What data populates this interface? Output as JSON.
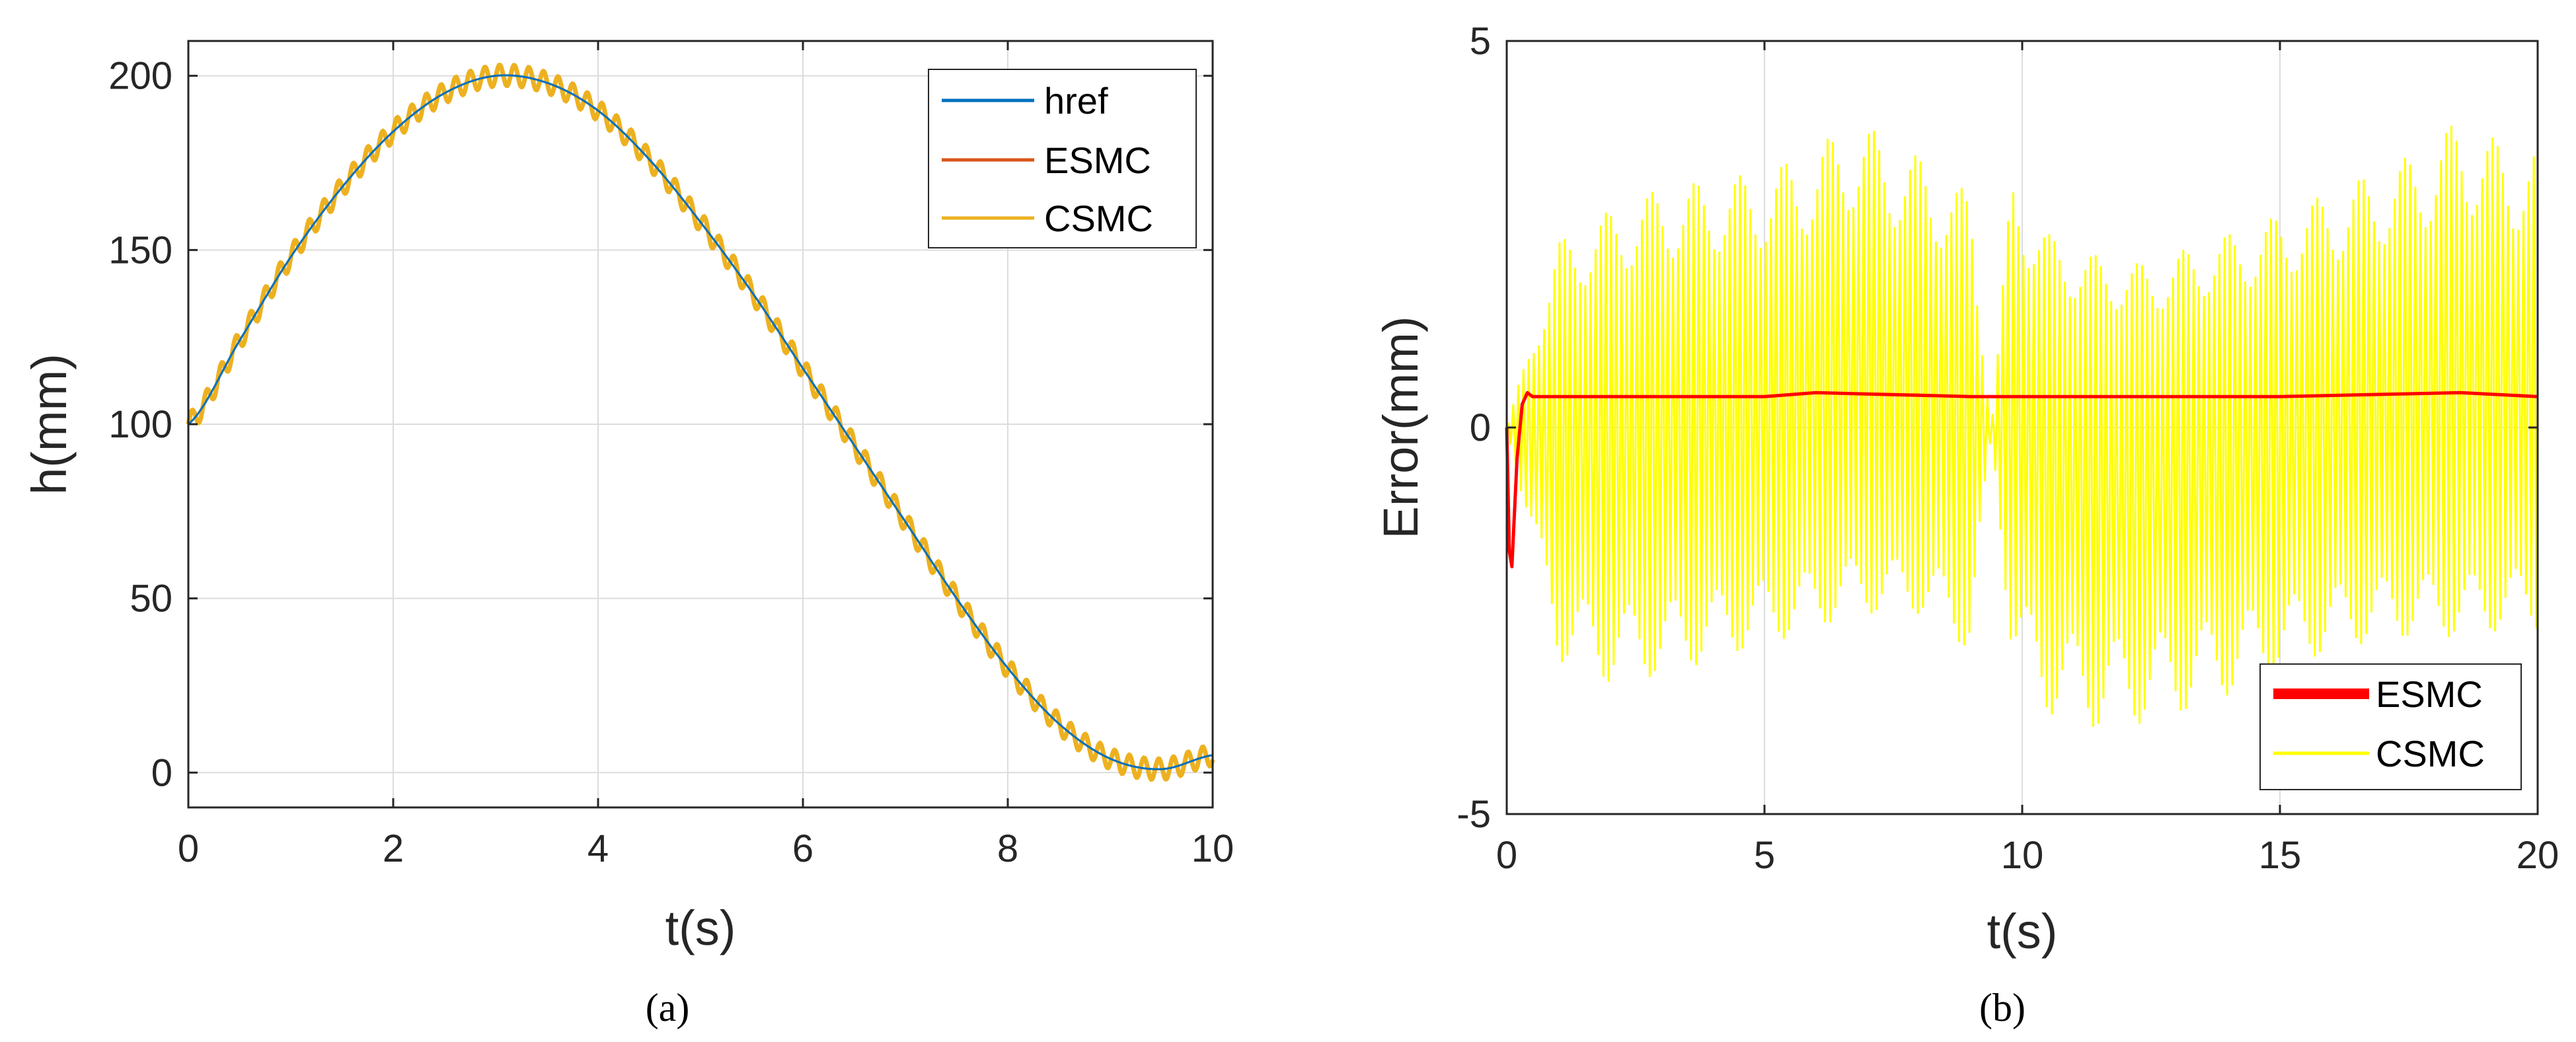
{
  "chart_data": [
    {
      "type": "line",
      "panel": "a",
      "caption": "(a)",
      "xlabel": "t(s)",
      "ylabel": "h(mm)",
      "xlim": [
        0,
        10
      ],
      "ylim": [
        -10,
        210
      ],
      "xticks": [
        0,
        2,
        4,
        6,
        8,
        10
      ],
      "xtick_labels": [
        "0",
        "2",
        "4",
        "6",
        "8",
        "10"
      ],
      "yticks": [
        0,
        50,
        100,
        150,
        200
      ],
      "ytick_labels": [
        "0",
        "50",
        "100",
        "150",
        "200"
      ],
      "grid": true,
      "legend_position": "top-right",
      "series": [
        {
          "name": "href",
          "color": "#0072BD",
          "x": [
            0,
            0.5,
            1,
            1.5,
            2,
            2.5,
            3,
            3.5,
            4,
            4.5,
            5,
            5.5,
            6,
            6.5,
            7,
            7.5,
            8,
            8.5,
            9,
            9.5,
            10
          ],
          "values": [
            100,
            124,
            148,
            168,
            184,
            195,
            200,
            198,
            190,
            176,
            158,
            138,
            116,
            94,
            72,
            50,
            30,
            14,
            4,
            1,
            5
          ]
        },
        {
          "name": "ESMC",
          "color": "#D95319",
          "x": [
            0,
            0.5,
            1,
            1.5,
            2,
            2.5,
            3,
            3.5,
            4,
            4.5,
            5,
            5.5,
            6,
            6.5,
            7,
            7.5,
            8,
            8.5,
            9,
            9.5,
            10
          ],
          "values": [
            100,
            124,
            148,
            168,
            184,
            195,
            200,
            198,
            190,
            176,
            158,
            138,
            116,
            94,
            72,
            50,
            30,
            14,
            4,
            1,
            5
          ]
        },
        {
          "name": "CSMC",
          "color": "#EDB120",
          "x": [
            0,
            0.5,
            1,
            1.5,
            2,
            2.5,
            3,
            3.5,
            4,
            4.5,
            5,
            5.5,
            6,
            6.5,
            7,
            7.5,
            8,
            8.5,
            9,
            9.5,
            10
          ],
          "values": [
            100,
            124,
            148,
            168,
            184,
            195,
            200,
            198,
            190,
            176,
            158,
            138,
            116,
            94,
            72,
            50,
            30,
            14,
            4,
            1,
            5
          ],
          "ripple_amplitude": 3,
          "ripple_period": 0.143
        }
      ]
    },
    {
      "type": "line",
      "panel": "b",
      "caption": "(b)",
      "xlabel": "t(s)",
      "ylabel": "Error(mm)",
      "xlim": [
        0,
        20
      ],
      "ylim": [
        -5,
        5
      ],
      "xticks": [
        0,
        5,
        10,
        15,
        20
      ],
      "xtick_labels": [
        "0",
        "5",
        "10",
        "15",
        "20"
      ],
      "yticks": [
        -5,
        0,
        5
      ],
      "ytick_labels": [
        "-5",
        "0",
        "5"
      ],
      "grid": true,
      "legend_position": "bottom-right",
      "series": [
        {
          "name": "ESMC",
          "color": "#FF0000",
          "line_width": "thick",
          "x": [
            0,
            0.05,
            0.1,
            0.2,
            0.3,
            0.4,
            0.5,
            1,
            5,
            6,
            9,
            10,
            15,
            18.5,
            20
          ],
          "values": [
            0,
            -1.6,
            -1.8,
            -0.4,
            0.3,
            0.45,
            0.4,
            0.4,
            0.4,
            0.45,
            0.4,
            0.4,
            0.4,
            0.45,
            0.4
          ]
        },
        {
          "name": "CSMC",
          "color": "#FFFF00",
          "x": [
            0,
            1,
            2,
            3,
            4,
            5,
            6,
            6.7,
            8,
            9,
            9.4,
            9.8,
            10.5,
            11.5,
            12.5,
            13.5,
            14.5,
            15.5,
            16.5,
            17.5,
            18.5,
            19.5,
            20
          ],
          "upper_envelope": [
            0,
            2.4,
            2.8,
            3.1,
            3.2,
            3.3,
            3.6,
            4.0,
            3.5,
            3.0,
            0,
            3.3,
            2.5,
            2.2,
            2.1,
            2.4,
            2.6,
            2.9,
            3.2,
            3.5,
            4.0,
            3.6,
            3.6
          ],
          "lower_envelope": [
            0,
            -3.0,
            -3.3,
            -3.2,
            -3.0,
            -2.8,
            -2.6,
            -2.4,
            -2.4,
            -2.9,
            -0.1,
            -3.0,
            -3.7,
            -3.9,
            -3.8,
            -3.6,
            -3.3,
            -3.0,
            -2.8,
            -2.7,
            -2.7,
            -2.6,
            -2.6
          ],
          "oscillation_period": 0.1
        }
      ]
    }
  ]
}
